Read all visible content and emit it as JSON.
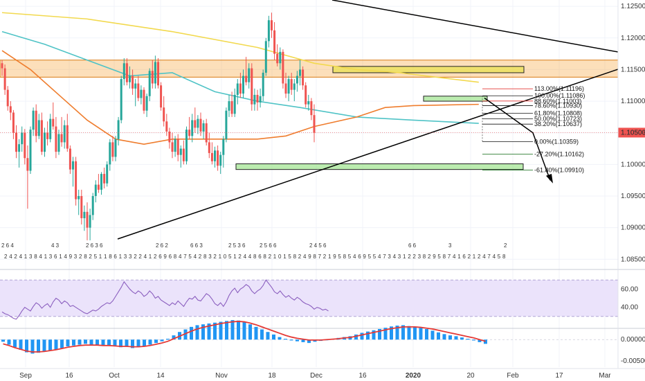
{
  "chart_data": {
    "type": "candlestick",
    "timeframe": "daily",
    "last_price": "1.10503",
    "price_axis": {
      "range": [
        1.0835,
        1.126
      ],
      "ticks": [
        "1.12500",
        "1.12000",
        "1.11500",
        "1.11000",
        "1.10500",
        "1.10000",
        "1.09500",
        "1.09000",
        "1.08500"
      ]
    },
    "time_axis": {
      "ticks": [
        "Sep",
        "16",
        "Oct",
        "14",
        "Nov",
        "18",
        "Dec",
        "16",
        "2020",
        "20",
        "Feb",
        "17",
        "Mar"
      ]
    },
    "ohlc_daily_approx": [
      [
        1.116,
        1.1165,
        1.114,
        1.1152
      ],
      [
        1.1152,
        1.1158,
        1.111,
        1.1118
      ],
      [
        1.1118,
        1.1124,
        1.1085,
        1.1092
      ],
      [
        1.1092,
        1.11,
        1.107,
        1.1082
      ],
      [
        1.1082,
        1.1086,
        1.104,
        1.105
      ],
      [
        1.105,
        1.1062,
        1.101,
        1.102
      ],
      [
        1.102,
        1.104,
        1.0995,
        1.1032
      ],
      [
        1.1032,
        1.106,
        1.102,
        1.105
      ],
      [
        1.105,
        1.1056,
        1.1,
        1.101
      ],
      [
        1.101,
        1.103,
        1.093,
        1.099
      ],
      [
        1.099,
        1.106,
        1.0985,
        1.1055
      ],
      [
        1.1055,
        1.109,
        1.1045,
        1.1085
      ],
      [
        1.1085,
        1.1095,
        1.1035,
        1.1045
      ],
      [
        1.1045,
        1.108,
        1.104,
        1.107
      ],
      [
        1.107,
        1.1082,
        1.1015,
        1.102
      ],
      [
        1.102,
        1.1058,
        1.1012,
        1.105
      ],
      [
        1.105,
        1.1068,
        1.103,
        1.104
      ],
      [
        1.104,
        1.108,
        1.1035,
        1.1072
      ],
      [
        1.1072,
        1.1098,
        1.1055,
        1.106
      ],
      [
        1.106,
        1.1075,
        1.101,
        1.102
      ],
      [
        1.102,
        1.1055,
        1.1015,
        1.1048
      ],
      [
        1.1048,
        1.1075,
        1.1028,
        1.1035
      ],
      [
        1.1035,
        1.107,
        1.1025,
        1.1062
      ],
      [
        1.1062,
        1.108,
        1.102,
        1.1025
      ],
      [
        1.1025,
        1.103,
        1.0985,
        1.0992
      ],
      [
        1.0992,
        1.1012,
        1.0965,
        1.1005
      ],
      [
        1.1005,
        1.1012,
        1.0935,
        1.0945
      ],
      [
        1.0945,
        1.096,
        1.092,
        1.095
      ],
      [
        1.095,
        1.096,
        1.0905,
        1.0915
      ],
      [
        1.0915,
        1.0935,
        1.0895,
        1.0925
      ],
      [
        1.0925,
        1.094,
        1.088,
        1.09
      ],
      [
        1.09,
        1.093,
        1.088,
        1.092
      ],
      [
        1.092,
        1.0955,
        1.0912,
        1.095
      ],
      [
        1.095,
        1.0975,
        1.094,
        1.0968
      ],
      [
        1.0968,
        1.0985,
        1.0955,
        1.096
      ],
      [
        1.096,
        1.0988,
        1.0952,
        1.0985
      ],
      [
        1.0985,
        1.0995,
        1.0962,
        1.097
      ],
      [
        1.097,
        1.1005,
        1.0965,
        1.1
      ],
      [
        1.1,
        1.104,
        1.099,
        1.1035
      ],
      [
        1.1035,
        1.1045,
        1.1005,
        1.1012
      ],
      [
        1.1012,
        1.1045,
        1.1005,
        1.104
      ],
      [
        1.104,
        1.1075,
        1.103,
        1.107
      ],
      [
        1.107,
        1.114,
        1.1065,
        1.1135
      ],
      [
        1.1135,
        1.1168,
        1.1125,
        1.116
      ],
      [
        1.116,
        1.1168,
        1.1125,
        1.113
      ],
      [
        1.113,
        1.1155,
        1.112,
        1.114
      ],
      [
        1.114,
        1.115,
        1.111,
        1.112
      ],
      [
        1.112,
        1.1135,
        1.1092,
        1.1128
      ],
      [
        1.1128,
        1.114,
        1.11,
        1.1105
      ],
      [
        1.1105,
        1.1125,
        1.1095,
        1.1118
      ],
      [
        1.1118,
        1.1122,
        1.108,
        1.1085
      ],
      [
        1.1085,
        1.1112,
        1.1075,
        1.1108
      ],
      [
        1.1108,
        1.1152,
        1.11,
        1.1148
      ],
      [
        1.1148,
        1.1165,
        1.112,
        1.1128
      ],
      [
        1.1128,
        1.1172,
        1.112,
        1.1162
      ],
      [
        1.1162,
        1.1168,
        1.112,
        1.1125
      ],
      [
        1.1125,
        1.113,
        1.1085,
        1.109
      ],
      [
        1.109,
        1.1108,
        1.106,
        1.1068
      ],
      [
        1.1068,
        1.108,
        1.1045,
        1.1052
      ],
      [
        1.1052,
        1.1058,
        1.1025,
        1.1035
      ],
      [
        1.1035,
        1.105,
        1.101,
        1.102
      ],
      [
        1.102,
        1.1045,
        1.1012,
        1.104
      ],
      [
        1.104,
        1.1048,
        1.1005,
        1.1015
      ],
      [
        1.1015,
        1.103,
        1.0995,
        1.1025
      ],
      [
        1.1025,
        1.1038,
        1.1,
        1.1005
      ],
      [
        1.1005,
        1.106,
        1.1,
        1.1055
      ],
      [
        1.1055,
        1.1075,
        1.104,
        1.1045
      ],
      [
        1.1045,
        1.108,
        1.1035,
        1.107
      ],
      [
        1.107,
        1.109,
        1.105,
        1.1058
      ],
      [
        1.1058,
        1.1078,
        1.1048,
        1.1072
      ],
      [
        1.1072,
        1.1082,
        1.1045,
        1.1052
      ],
      [
        1.1052,
        1.107,
        1.104,
        1.1065
      ],
      [
        1.1065,
        1.1072,
        1.103,
        1.1035
      ],
      [
        1.1035,
        1.105,
        1.101,
        1.1018
      ],
      [
        1.1018,
        1.1035,
        1.1,
        1.1005
      ],
      [
        1.1005,
        1.1028,
        1.0995,
        1.1022
      ],
      [
        1.1022,
        1.103,
        1.099,
        1.0998
      ],
      [
        1.0998,
        1.102,
        1.0985,
        1.1015
      ],
      [
        1.1015,
        1.1045,
        1.0995,
        1.104
      ],
      [
        1.104,
        1.109,
        1.1035,
        1.1085
      ],
      [
        1.1085,
        1.111,
        1.1075,
        1.11
      ],
      [
        1.11,
        1.1115,
        1.1075,
        1.108
      ],
      [
        1.108,
        1.112,
        1.1075,
        1.111
      ],
      [
        1.111,
        1.1135,
        1.1095,
        1.1128
      ],
      [
        1.1128,
        1.1145,
        1.1105,
        1.1112
      ],
      [
        1.1112,
        1.115,
        1.1105,
        1.114
      ],
      [
        1.114,
        1.117,
        1.1125,
        1.113
      ],
      [
        1.113,
        1.116,
        1.112,
        1.1152
      ],
      [
        1.1152,
        1.116,
        1.1085,
        1.1095
      ],
      [
        1.1095,
        1.112,
        1.1085,
        1.111
      ],
      [
        1.111,
        1.1118,
        1.1085,
        1.1098
      ],
      [
        1.1098,
        1.112,
        1.109,
        1.1108
      ],
      [
        1.1108,
        1.115,
        1.11,
        1.1145
      ],
      [
        1.1145,
        1.12,
        1.114,
        1.1195
      ],
      [
        1.1195,
        1.1235,
        1.1185,
        1.1228
      ],
      [
        1.1228,
        1.124,
        1.12,
        1.1212
      ],
      [
        1.1212,
        1.1225,
        1.1165,
        1.1175
      ],
      [
        1.1175,
        1.119,
        1.1155,
        1.116
      ],
      [
        1.116,
        1.1185,
        1.115,
        1.1178
      ],
      [
        1.1178,
        1.1182,
        1.112,
        1.1128
      ],
      [
        1.1128,
        1.1145,
        1.1105,
        1.1112
      ],
      [
        1.1112,
        1.114,
        1.11,
        1.1135
      ],
      [
        1.1135,
        1.1145,
        1.111,
        1.1118
      ],
      [
        1.1118,
        1.1135,
        1.11,
        1.1128
      ],
      [
        1.1128,
        1.1148,
        1.1115,
        1.114
      ],
      [
        1.114,
        1.1165,
        1.1125,
        1.115
      ],
      [
        1.115,
        1.1155,
        1.1118,
        1.1125
      ],
      [
        1.1125,
        1.113,
        1.109,
        1.1095
      ],
      [
        1.1095,
        1.111,
        1.1085,
        1.11
      ],
      [
        1.11,
        1.1105,
        1.107,
        1.1078
      ],
      [
        1.1078,
        1.1095,
        1.1035,
        1.105
      ]
    ],
    "moving_averages": [
      {
        "color": "#f2d94e",
        "points": [
          [
            0,
            1.124
          ],
          [
            30,
            1.123
          ],
          [
            60,
            1.121
          ],
          [
            90,
            1.1185
          ],
          [
            110,
            1.116
          ],
          [
            125,
            1.115
          ],
          [
            140,
            1.1145
          ],
          [
            168,
            1.113
          ]
        ]
      },
      {
        "color": "#4fc3c6",
        "points": [
          [
            0,
            1.121
          ],
          [
            15,
            1.119
          ],
          [
            30,
            1.1165
          ],
          [
            45,
            1.114
          ],
          [
            60,
            1.1145
          ],
          [
            75,
            1.1115
          ],
          [
            90,
            1.11
          ],
          [
            105,
            1.109
          ],
          [
            125,
            1.1075
          ],
          [
            145,
            1.107
          ],
          [
            168,
            1.1065
          ]
        ]
      },
      {
        "color": "#ef7d2e",
        "points": [
          [
            0,
            1.118
          ],
          [
            10,
            1.115
          ],
          [
            20,
            1.111
          ],
          [
            30,
            1.107
          ],
          [
            40,
            1.104
          ],
          [
            50,
            1.1032
          ],
          [
            60,
            1.104
          ],
          [
            75,
            1.104
          ],
          [
            90,
            1.104
          ],
          [
            100,
            1.1045
          ],
          [
            110,
            1.106
          ],
          [
            125,
            1.1075
          ],
          [
            135,
            1.109
          ],
          [
            145,
            1.1093
          ],
          [
            168,
            1.1095
          ]
        ]
      }
    ],
    "zones": [
      {
        "color": "#f7a23a",
        "from": 1.1138,
        "to": 1.1165
      },
      {
        "color": "#e6e23a",
        "from": 1.1145,
        "to": 1.1155
      },
      {
        "color": "#8ee07a",
        "from": 1.11,
        "to": 1.1108
      },
      {
        "color": "#8ee07a",
        "from": 1.0992,
        "to": 1.1001
      }
    ],
    "fibonacci_labels": [
      {
        "text": "113.00%(1.11196)",
        "color": "#e53935"
      },
      {
        "text": "100.00%(1.11086)",
        "color": "#111111"
      },
      {
        "text": "88.60%(1.11003)",
        "color": "#e53935"
      },
      {
        "text": "78.60%(1.10930)",
        "color": "#111111"
      },
      {
        "text": "61.80%(1.10808)",
        "color": "#111111"
      },
      {
        "text": "50.00%(1.10723)",
        "color": "#111111"
      },
      {
        "text": "38.20%(1.10637)",
        "color": "#111111"
      },
      {
        "text": "0.00%(1.10359)",
        "color": "#111111"
      },
      {
        "text": "-27.20%(1.10162)",
        "color": "#2e7d32"
      },
      {
        "text": "-61.80%(1.09910)",
        "color": "#2e7d32"
      }
    ],
    "fibonacci_prices": [
      1.11196,
      1.11086,
      1.11003,
      1.1093,
      1.10808,
      1.10723,
      1.10637,
      1.10359,
      1.10162,
      1.0991
    ],
    "event_markers_row": "2 4 2 4 1 3 8 4 1 3 6 1 4 9 3 2 8 2 5 1 1 8 6 1 3 3 2 2 4 1 2 6 9 6 8 4 7 5 4 2 8 3 2 1 0 5 1 2 4 4 8 6 8 2 1 0 1 5 8 2 4 9 8 7 2 1 9 5 8 5 4 6 9 5 5 4 7 3 4 3 1 2 2 3 8 2 9 5 8 7 4 1 6 2 1 2 4 7 4 5 8",
    "event_markers_upper": [
      "2 6 4",
      "4 3",
      "2 6 3 6",
      "2 6 2",
      "6 6 3",
      "2 5 3 6",
      "2 5 6 6",
      "2 4 5 6",
      "6 6",
      "3",
      "2"
    ],
    "rsi": {
      "ticks": [
        "60.00",
        "40.00"
      ],
      "range": [
        20,
        80
      ],
      "band": [
        30,
        70
      ],
      "values": [
        35,
        33,
        32,
        30,
        28,
        27,
        31,
        36,
        40,
        38,
        36,
        41,
        45,
        43,
        39,
        42,
        44,
        40,
        46,
        50,
        48,
        44,
        47,
        45,
        41,
        42,
        40,
        38,
        36,
        34,
        33,
        35,
        37,
        36,
        38,
        41,
        43,
        45,
        44,
        47,
        52,
        57,
        62,
        68,
        64,
        60,
        57,
        55,
        58,
        56,
        52,
        54,
        58,
        55,
        50,
        52,
        48,
        46,
        44,
        42,
        45,
        43,
        47,
        44,
        41,
        46,
        50,
        49,
        52,
        48,
        47,
        51,
        55,
        53,
        49,
        44,
        42,
        45,
        41,
        46,
        53,
        58,
        61,
        56,
        60,
        62,
        65,
        63,
        58,
        55,
        58,
        60,
        64,
        70,
        66,
        62,
        57,
        55,
        58,
        54,
        51,
        53,
        50,
        48,
        51,
        49,
        46,
        44,
        43,
        41,
        38,
        40,
        39,
        37,
        38,
        36
      ]
    },
    "macd": {
      "ticks": [
        "0.00000",
        "-0.00500"
      ],
      "range": [
        -0.0065,
        0.002
      ],
      "histogram": [
        -0.0005,
        -0.0012,
        -0.0018,
        -0.0024,
        -0.003,
        -0.0033,
        -0.0031,
        -0.0028,
        -0.0026,
        -0.0024,
        -0.002,
        -0.0016,
        -0.0014,
        -0.0012,
        -0.001,
        -0.0012,
        -0.0014,
        -0.0015,
        -0.0013,
        -0.0016,
        -0.0018,
        -0.0017,
        -0.002,
        -0.0018,
        -0.0016,
        -0.0012,
        -0.0008,
        -0.0004,
        0.0002,
        0.001,
        0.0018,
        0.0024,
        0.003,
        0.0034,
        0.0036,
        0.0038,
        0.004,
        0.0042,
        0.0044,
        0.0046,
        0.0045,
        0.0041,
        0.0036,
        0.003,
        0.0024,
        0.0018,
        0.0012,
        0.0006,
        0.0002,
        -0.0002,
        -0.0004,
        -0.0006,
        -0.0008,
        -0.0005,
        -0.0003,
        -0.0001,
        0.0002,
        0.0004,
        0.0006,
        0.0008,
        0.0012,
        0.0016,
        0.0019,
        0.0022,
        0.0025,
        0.0028,
        0.0031,
        0.0033,
        0.0034,
        0.0032,
        0.003,
        0.0028,
        0.0025,
        0.0021,
        0.0017,
        0.0013,
        0.001,
        0.0008,
        0.0005,
        0.0002,
        -0.0002,
        -0.0006,
        -0.001
      ],
      "signal": [
        -0.001,
        -0.0014,
        -0.0019,
        -0.0023,
        -0.0027,
        -0.0029,
        -0.0029,
        -0.0028,
        -0.0026,
        -0.0024,
        -0.0021,
        -0.0018,
        -0.0016,
        -0.0014,
        -0.0013,
        -0.0013,
        -0.0013,
        -0.0014,
        -0.0014,
        -0.0015,
        -0.0016,
        -0.0016,
        -0.0017,
        -0.0017,
        -0.0016,
        -0.0014,
        -0.0011,
        -0.0008,
        -0.0004,
        0.0002,
        0.0008,
        0.0014,
        0.002,
        0.0025,
        0.0029,
        0.0032,
        0.0035,
        0.0038,
        0.004,
        0.0042,
        0.0043,
        0.0042,
        0.0039,
        0.0035,
        0.003,
        0.0025,
        0.002,
        0.0015,
        0.001,
        0.0006,
        0.0003,
        0.0001,
        -0.0001,
        -0.0001,
        -0.0001,
        0.0,
        0.0001,
        0.0002,
        0.0004,
        0.0005,
        0.0008,
        0.0011,
        0.0014,
        0.0017,
        0.002,
        0.0023,
        0.0026,
        0.0028,
        0.003,
        0.003,
        0.003,
        0.0029,
        0.0027,
        0.0025,
        0.0022,
        0.0019,
        0.0016,
        0.0013,
        0.001,
        0.0007,
        0.0004,
        0.0,
        -0.0004
      ]
    }
  }
}
